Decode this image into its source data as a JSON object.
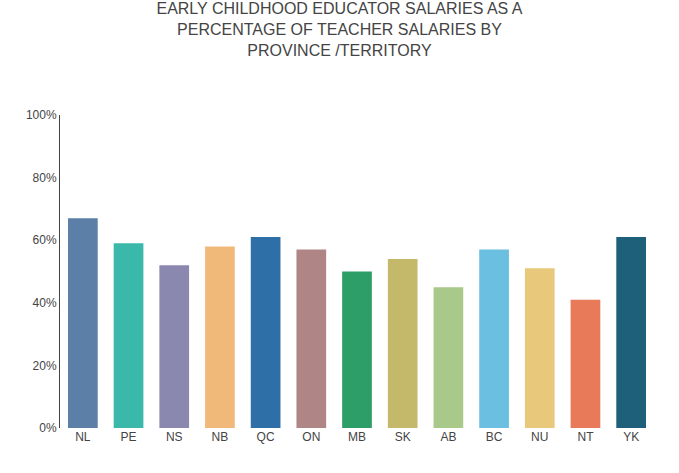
{
  "chart_data": {
    "type": "bar",
    "title": "EARLY CHILDHOOD EDUCATOR SALARIES AS A PERCENTAGE OF TEACHER SALARIES BY PROVINCE /TERRITORY",
    "categories": [
      "NL",
      "PE",
      "NS",
      "NB",
      "QC",
      "ON",
      "MB",
      "SK",
      "AB",
      "BC",
      "NU",
      "NT",
      "YK"
    ],
    "values": [
      67,
      59,
      52,
      58,
      61,
      57,
      50,
      54,
      45,
      57,
      51,
      41,
      61
    ],
    "colors": [
      "#5b7fa6",
      "#3ab8aa",
      "#8b88b0",
      "#f0b97a",
      "#2f6fa8",
      "#b08585",
      "#2e9e68",
      "#c4b86a",
      "#a8c98a",
      "#6bbfe0",
      "#e8c87a",
      "#e87a5a",
      "#1e5f7a"
    ],
    "ylim": [
      0,
      100
    ],
    "yticks": [
      {
        "value": 0,
        "label": "0%"
      },
      {
        "value": 20,
        "label": "20%"
      },
      {
        "value": 40,
        "label": "40%"
      },
      {
        "value": 60,
        "label": "60%"
      },
      {
        "value": 80,
        "label": "80%"
      },
      {
        "value": 100,
        "label": "100%"
      }
    ],
    "grid": false
  }
}
